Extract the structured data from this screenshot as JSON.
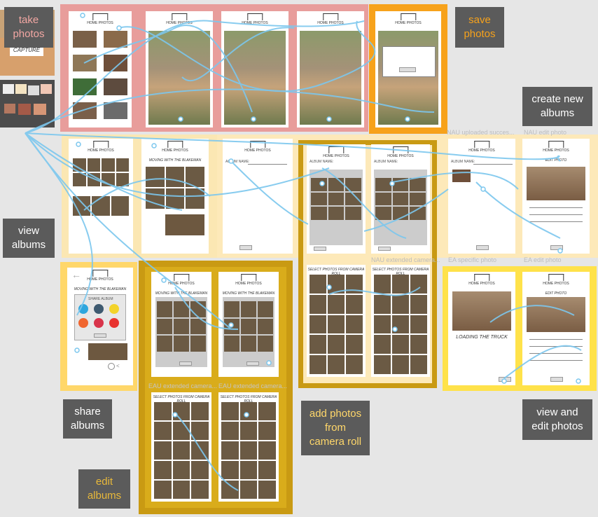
{
  "labels": {
    "take_photos": "take\nphotos",
    "save_photos": "save\nphotos",
    "create_new_albums": "create new\nalbums",
    "view_albums": "view\nalbums",
    "share_albums": "share\nalbums",
    "edit_albums": "edit\nalbums",
    "add_photos": "add photos\nfrom\ncamera roll",
    "view_edit_photos": "view and\nedit photos"
  },
  "captions": {
    "nau_uploaded": "NAU uploaded succes...",
    "nau_edit_photo": "NAU edit photo",
    "nau_extended_camera": "NAU extended camera...",
    "ea_specific_photo": "EA specific photo",
    "ea_edit_photo": "EA edit photo",
    "eau_extended_camera_1": "EAU extended camera...",
    "eau_extended_camera_2": "EAU extended camera..."
  },
  "screens": {
    "logo": "HOME PHOTOS",
    "capture": "CAPTURE",
    "moving_title": "MOVING WITH THE BLAKEMAN",
    "select_photos": "SELECT PHOTOS FROM CAMERA ROLL",
    "edit_photo": "EDIT PHOTO",
    "loading_truck": "LOADING THE TRUCK",
    "share_album": "SHARE ALBUM",
    "album_name": "ALBUM NAME:"
  },
  "colors": {
    "bg": "#e6e6e6",
    "label_bg": "#5b5b5b",
    "take_text": "#f2a7a3",
    "save_text": "#f7a21b",
    "white_text": "#ffffff",
    "gold_text": "#e9b93a",
    "link": "#7cc7ee",
    "pink_group": "#e89d9b",
    "orange_group": "#f7a21b",
    "pale_group": "#fbe7b3",
    "dark_gold_group": "#c99a13",
    "mid_gold_group": "#d9ac1b",
    "yellow_group": "#ffe24a",
    "light_yellow_group": "#ffd76a"
  }
}
